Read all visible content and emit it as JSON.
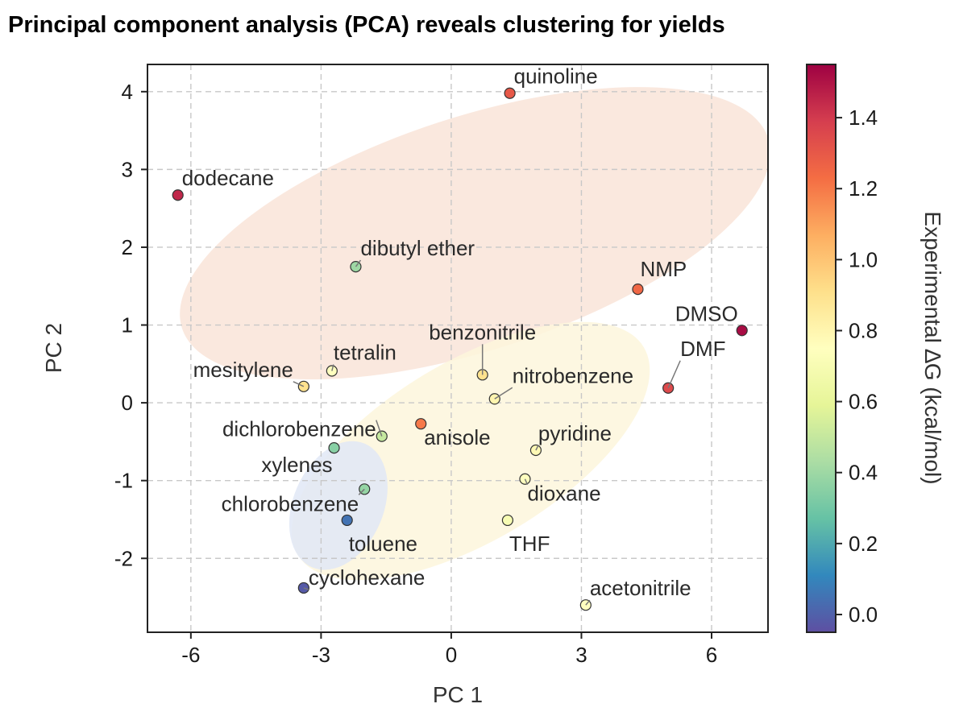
{
  "chart_data": {
    "type": "scatter",
    "title": "Principal component analysis (PCA) reveals clustering for yields",
    "xlabel": "PC 1",
    "ylabel": "PC 2",
    "xlim": [
      -7,
      7.3
    ],
    "ylim": [
      -2.95,
      4.35
    ],
    "xticks": [
      -6,
      -3,
      0,
      3,
      6
    ],
    "xtick_labels": [
      "-6",
      "-3",
      "0",
      "3",
      "6"
    ],
    "yticks": [
      -2,
      -1,
      0,
      1,
      2,
      3,
      4
    ],
    "ytick_labels": [
      "-2",
      "-1",
      "0",
      "1",
      "2",
      "3",
      "4"
    ],
    "grid": true,
    "colorbar": {
      "label": "Experimental ∆G (kcal/mol)",
      "range": [
        -0.05,
        1.55
      ],
      "ticks": [
        0.0,
        0.2,
        0.4,
        0.6,
        0.8,
        1.0,
        1.2,
        1.4
      ],
      "tick_labels": [
        "0.0",
        "0.2",
        "0.4",
        "0.6",
        "0.8",
        "1.0",
        "1.2",
        "1.4"
      ],
      "colormap": "Spectral_r"
    },
    "points": [
      {
        "name": "quinoline",
        "x": 1.35,
        "y": 3.98,
        "dg": 1.3
      },
      {
        "name": "dodecane",
        "x": -6.3,
        "y": 2.67,
        "dg": 1.45
      },
      {
        "name": "dibutyl ether",
        "x": -2.2,
        "y": 1.75,
        "dg": 0.4
      },
      {
        "name": "NMP",
        "x": 4.3,
        "y": 1.46,
        "dg": 1.25
      },
      {
        "name": "DMSO",
        "x": 6.7,
        "y": 0.93,
        "dg": 1.52
      },
      {
        "name": "benzonitrile",
        "x": 0.72,
        "y": 0.36,
        "dg": 0.9
      },
      {
        "name": "tetralin",
        "x": -2.75,
        "y": 0.41,
        "dg": 0.75
      },
      {
        "name": "mesitylene",
        "x": -3.4,
        "y": 0.21,
        "dg": 0.9
      },
      {
        "name": "nitrobenzene",
        "x": 1.0,
        "y": 0.05,
        "dg": 0.8
      },
      {
        "name": "DMF",
        "x": 5.0,
        "y": 0.19,
        "dg": 1.35
      },
      {
        "name": "anisole",
        "x": -0.7,
        "y": -0.27,
        "dg": 1.2
      },
      {
        "name": "dichlorobenzene",
        "x": -1.6,
        "y": -0.43,
        "dg": 0.5
      },
      {
        "name": "pyridine",
        "x": 1.95,
        "y": -0.61,
        "dg": 0.78
      },
      {
        "name": "xylenes",
        "x": -2.7,
        "y": -0.58,
        "dg": 0.35
      },
      {
        "name": "dioxane",
        "x": 1.7,
        "y": -0.98,
        "dg": 0.75
      },
      {
        "name": "chlorobenzene",
        "x": -2.0,
        "y": -1.11,
        "dg": 0.38
      },
      {
        "name": "toluene",
        "x": -2.4,
        "y": -1.51,
        "dg": 0.05
      },
      {
        "name": "THF",
        "x": 1.3,
        "y": -1.51,
        "dg": 0.7
      },
      {
        "name": "cyclohexane",
        "x": -3.4,
        "y": -2.38,
        "dg": -0.02
      },
      {
        "name": "acetonitrile",
        "x": 3.1,
        "y": -2.6,
        "dg": 0.75
      }
    ],
    "clusters": [
      {
        "cx": 0.55,
        "cy": 2.18,
        "rx": 7.1,
        "ry": 1.5,
        "angle": -18,
        "color": "#f9e4d8"
      },
      {
        "cx": 0.45,
        "cy": -0.62,
        "rx": 4.65,
        "ry": 1.15,
        "angle": -31,
        "color": "#fdf6dc"
      },
      {
        "cx": -2.6,
        "cy": -1.32,
        "rx": 1.55,
        "ry": 0.58,
        "angle": -67,
        "color": "#e1e8f6"
      }
    ]
  }
}
